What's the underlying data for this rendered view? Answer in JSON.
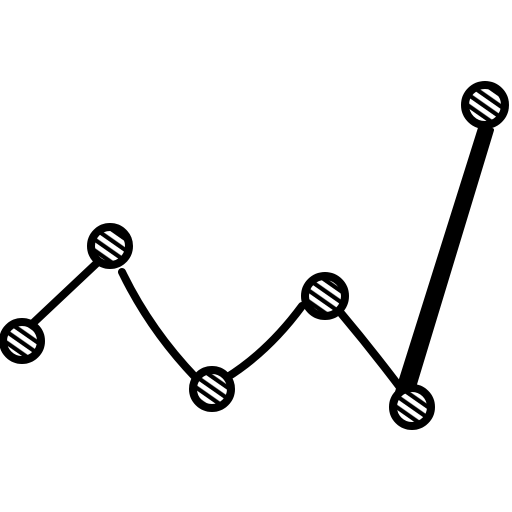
{
  "icon": {
    "name": "line-chart-sketch-icon",
    "stroke_color": "#000000",
    "background_color": "#ffffff",
    "marker_count": 6
  }
}
